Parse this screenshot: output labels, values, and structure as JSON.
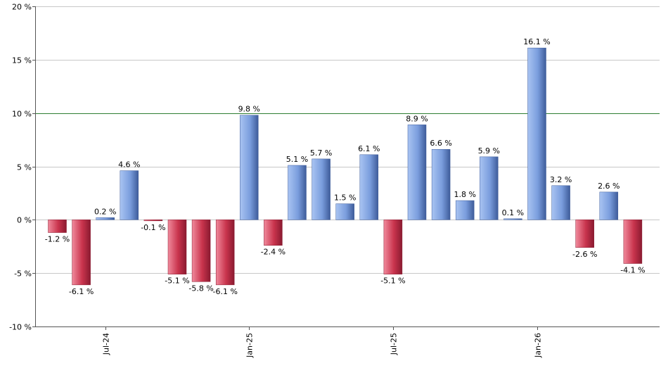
{
  "chart_data": {
    "type": "bar",
    "y_ticks": [
      "20 %",
      "15 %",
      "10 %",
      "5 %",
      "0 %",
      "-5 %",
      "-10 %"
    ],
    "y_tick_values": [
      20,
      15,
      10,
      5,
      0,
      -5,
      -10
    ],
    "ylim": [
      -10,
      20
    ],
    "reference_line": 10,
    "x_tick_labels": [
      "Jul-24",
      "Jan-25",
      "Jul-25",
      "Jan-26"
    ],
    "x_tick_bar_index": [
      2,
      8,
      14,
      20
    ],
    "values": [
      -1.2,
      -6.1,
      0.2,
      4.6,
      -0.1,
      -5.1,
      -5.8,
      -6.1,
      9.8,
      -2.4,
      5.1,
      5.7,
      1.5,
      6.1,
      -5.1,
      8.9,
      6.6,
      1.8,
      5.9,
      0.1,
      16.1,
      3.2,
      -2.6,
      2.6,
      -4.1
    ],
    "labels": [
      "-1.2 %",
      "-6.1 %",
      "0.2 %",
      "4.6 %",
      "-0.1 %",
      "-5.1 %",
      "-5.8 %",
      "-6.1 %",
      "9.8 %",
      "-2.4 %",
      "5.1 %",
      "5.7 %",
      "1.5 %",
      "6.1 %",
      "-5.1 %",
      "8.9 %",
      "6.6 %",
      "1.8 %",
      "5.9 %",
      "0.1 %",
      "16.1 %",
      "3.2 %",
      "-2.6 %",
      "2.6 %",
      "-4.1 %"
    ],
    "grid": true,
    "colors": {
      "positive": "#6f93d6",
      "positive_light": "#a9c4f2",
      "positive_dark": "#3e5c9a",
      "negative": "#c9344d",
      "negative_light": "#f08a9c",
      "negative_dark": "#8a1a30",
      "reference": "#2e7d32",
      "grid": "#c8c8c8",
      "axis": "#555555"
    }
  }
}
